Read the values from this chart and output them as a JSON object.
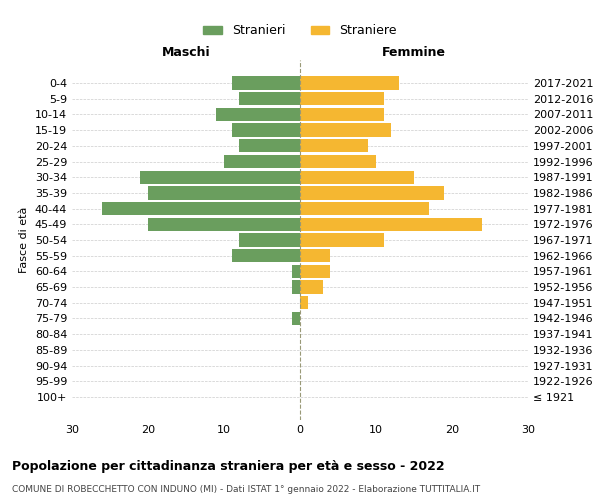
{
  "age_groups": [
    "100+",
    "95-99",
    "90-94",
    "85-89",
    "80-84",
    "75-79",
    "70-74",
    "65-69",
    "60-64",
    "55-59",
    "50-54",
    "45-49",
    "40-44",
    "35-39",
    "30-34",
    "25-29",
    "20-24",
    "15-19",
    "10-14",
    "5-9",
    "0-4"
  ],
  "birth_years": [
    "≤ 1921",
    "1922-1926",
    "1927-1931",
    "1932-1936",
    "1937-1941",
    "1942-1946",
    "1947-1951",
    "1952-1956",
    "1957-1961",
    "1962-1966",
    "1967-1971",
    "1972-1976",
    "1977-1981",
    "1982-1986",
    "1987-1991",
    "1992-1996",
    "1997-2001",
    "2002-2006",
    "2007-2011",
    "2012-2016",
    "2017-2021"
  ],
  "maschi": [
    0,
    0,
    0,
    0,
    0,
    1,
    0,
    1,
    1,
    9,
    8,
    20,
    26,
    20,
    21,
    10,
    8,
    9,
    11,
    8,
    9
  ],
  "femmine": [
    0,
    0,
    0,
    0,
    0,
    0,
    1,
    3,
    4,
    4,
    11,
    24,
    17,
    19,
    15,
    10,
    9,
    12,
    11,
    11,
    13
  ],
  "male_color": "#6a9e5e",
  "female_color": "#f5b731",
  "title": "Popolazione per cittadinanza straniera per età e sesso - 2022",
  "subtitle": "COMUNE DI ROBECCHETTO CON INDUNO (MI) - Dati ISTAT 1° gennaio 2022 - Elaborazione TUTTITALIA.IT",
  "legend_male": "Stranieri",
  "legend_female": "Straniere",
  "xlim": 30,
  "xlabel_left": "Maschi",
  "xlabel_right": "Femmine",
  "ylabel_left": "Fasce di età",
  "bg_color": "#ffffff",
  "grid_color": "#cccccc",
  "center_line_color": "#999977",
  "tick_fontsize": 8,
  "bar_height": 0.85
}
